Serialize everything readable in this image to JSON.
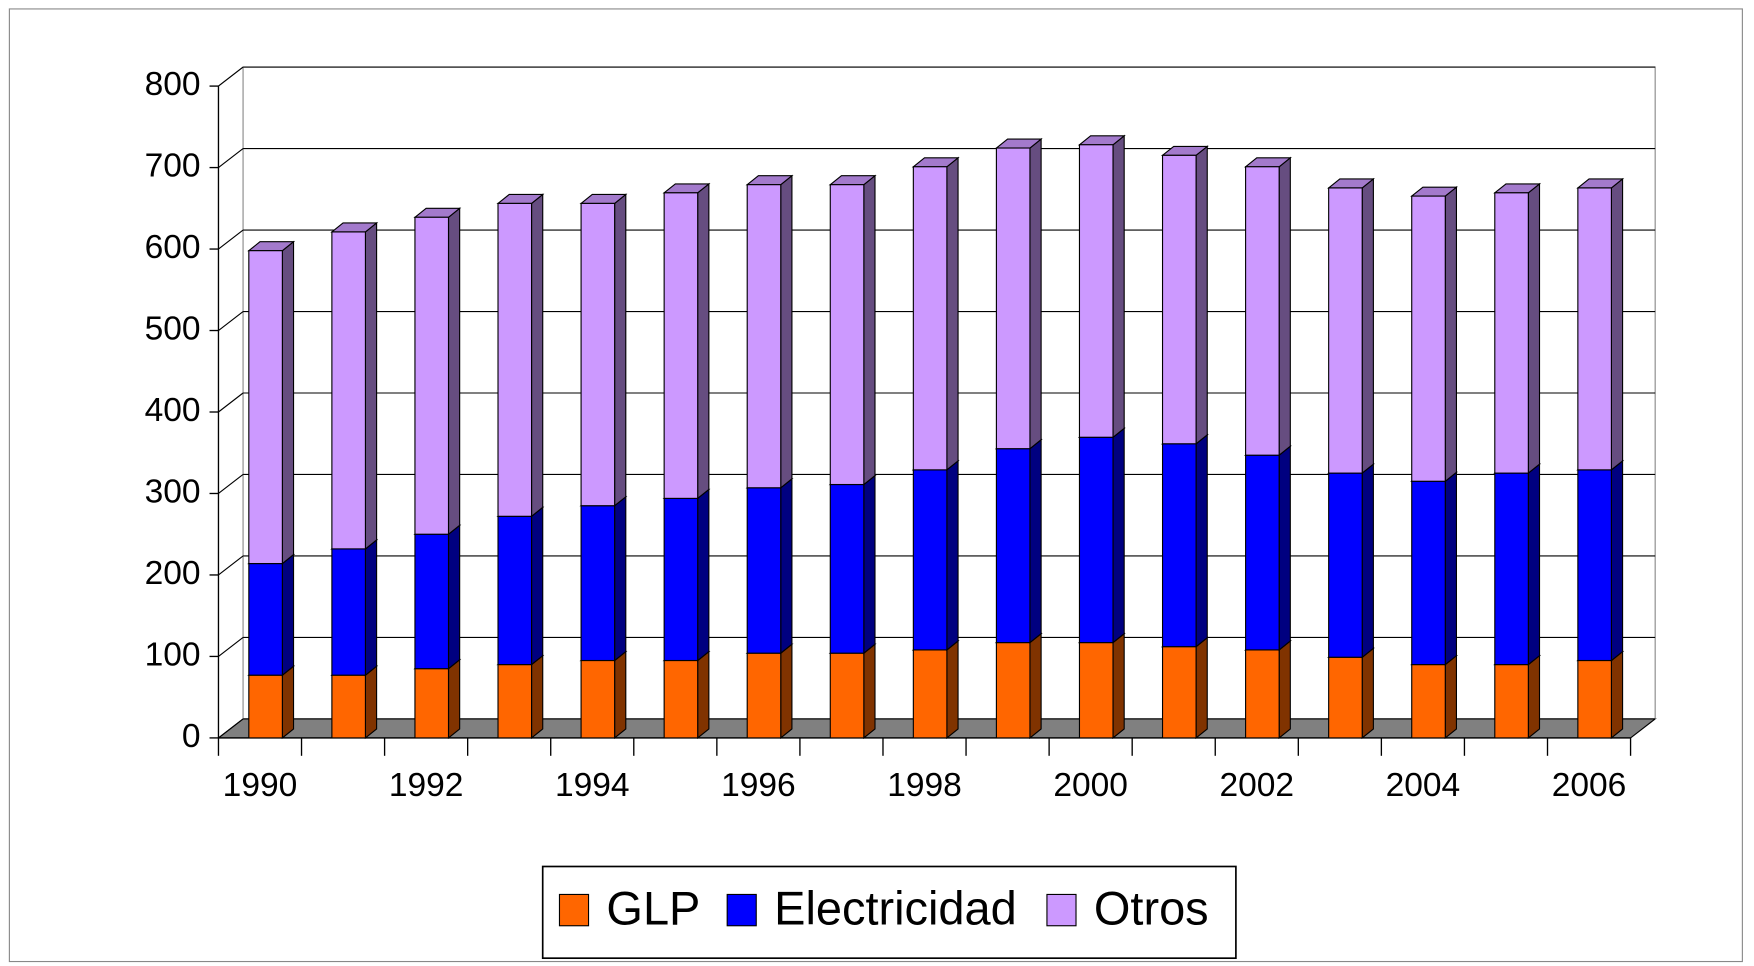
{
  "chart_data": {
    "type": "bar",
    "stacked": true,
    "three_d": true,
    "categories": [
      "1990",
      null,
      "1992",
      null,
      "1994",
      null,
      "1996",
      null,
      "1998",
      null,
      "2000",
      null,
      "2002",
      null,
      "2004",
      null,
      "2006"
    ],
    "series": [
      {
        "name": "GLP",
        "color": "#ff6600",
        "values": [
          77,
          77,
          85,
          90,
          95,
          95,
          104,
          104,
          108,
          117,
          117,
          112,
          108,
          99,
          90,
          90,
          95
        ]
      },
      {
        "name": "Electricidad",
        "color": "#0000ff",
        "values": [
          137,
          155,
          165,
          182,
          190,
          199,
          203,
          207,
          221,
          238,
          252,
          249,
          239,
          226,
          225,
          235,
          234
        ]
      },
      {
        "name": "Otros",
        "color": "#cc99ff",
        "values": [
          384,
          389,
          389,
          384,
          371,
          375,
          372,
          368,
          372,
          369,
          359,
          354,
          354,
          350,
          350,
          344,
          346
        ]
      }
    ],
    "ylim": [
      0,
      800
    ],
    "yticks": [
      0,
      100,
      200,
      300,
      400,
      500,
      600,
      700,
      800
    ],
    "grid": true,
    "legend": "bottom"
  }
}
